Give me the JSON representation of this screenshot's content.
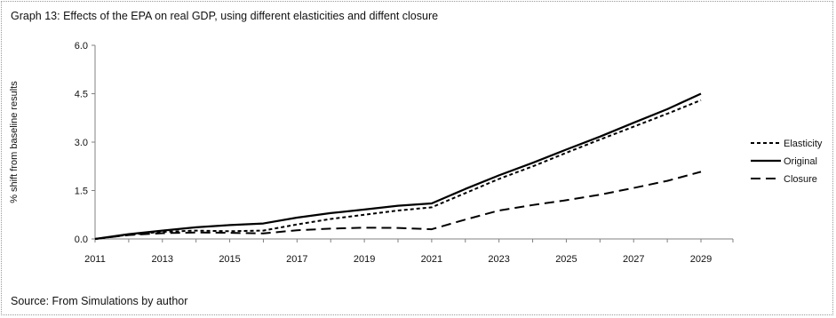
{
  "title": "Graph 13: Effects of  the EPA on real GDP, using different elasticities and diffent closure",
  "source": "Source: From Simulations by author",
  "chart_data": {
    "type": "line",
    "title": "Graph 13: Effects of  the EPA on real GDP, using different elasticities and diffent closure",
    "xlabel": "",
    "ylabel": "% shift from baseline results",
    "x": [
      2011,
      2012,
      2013,
      2014,
      2015,
      2016,
      2017,
      2018,
      2019,
      2020,
      2021,
      2022,
      2023,
      2024,
      2025,
      2026,
      2027,
      2028,
      2029
    ],
    "x_ticks": [
      "2011",
      "2013",
      "2015",
      "2017",
      "2019",
      "2021",
      "2023",
      "2025",
      "2027",
      "2029"
    ],
    "y_ticks": [
      "0.0",
      "1.5",
      "3.0",
      "4.5",
      "6.0"
    ],
    "ylim": [
      0,
      6
    ],
    "grid": false,
    "legend_position": "right",
    "series": [
      {
        "name": "Elasticity",
        "style": "short-dash",
        "color": "#000000",
        "values": [
          0.0,
          0.13,
          0.22,
          0.26,
          0.24,
          0.26,
          0.45,
          0.62,
          0.75,
          0.88,
          0.98,
          1.42,
          1.86,
          2.25,
          2.67,
          3.08,
          3.48,
          3.88,
          4.3
        ]
      },
      {
        "name": "Original",
        "style": "solid",
        "color": "#000000",
        "values": [
          0.0,
          0.15,
          0.26,
          0.36,
          0.43,
          0.48,
          0.66,
          0.8,
          0.91,
          1.03,
          1.1,
          1.55,
          1.97,
          2.36,
          2.77,
          3.17,
          3.6,
          4.02,
          4.5
        ]
      },
      {
        "name": "Closure",
        "style": "long-dash",
        "color": "#000000",
        "values": [
          0.0,
          0.12,
          0.18,
          0.2,
          0.19,
          0.17,
          0.27,
          0.32,
          0.35,
          0.34,
          0.3,
          0.6,
          0.88,
          1.05,
          1.2,
          1.37,
          1.58,
          1.8,
          2.08
        ]
      }
    ]
  }
}
